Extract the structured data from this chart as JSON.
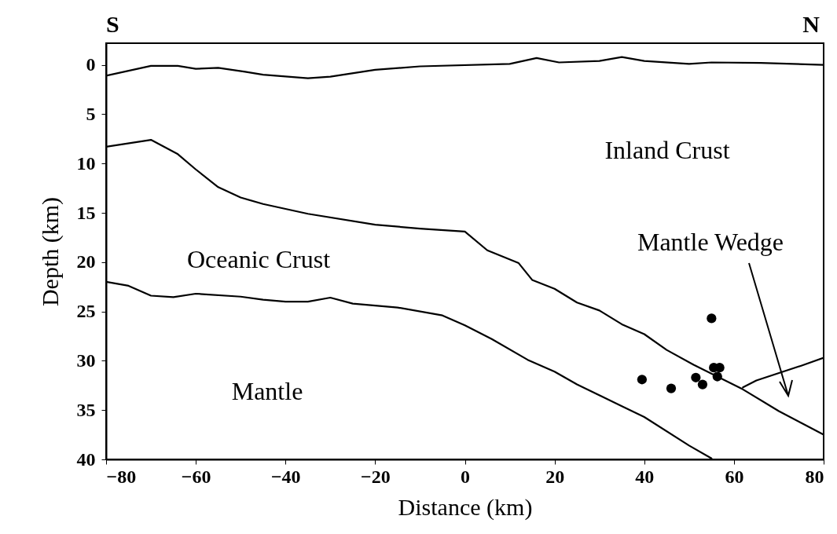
{
  "chart_data": {
    "type": "line",
    "xlabel": "Distance (km)",
    "ylabel": "Depth (km)",
    "xlim": [
      -80,
      80
    ],
    "ylim": [
      40,
      -2.2
    ],
    "xticks": [
      -80,
      -60,
      -40,
      -20,
      0,
      20,
      40,
      60,
      80
    ],
    "yticks": [
      0,
      5,
      10,
      15,
      20,
      25,
      30,
      35,
      40
    ],
    "grid": false,
    "series": [
      {
        "color": "#000000",
        "x": [
          -80,
          -70,
          -64,
          -60,
          -55,
          -49,
          -45,
          -35,
          -30,
          -20,
          -10,
          10,
          16,
          21,
          30,
          35,
          40,
          50,
          55,
          66,
          80
        ],
        "values": [
          1.1,
          0.1,
          0.1,
          0.4,
          0.3,
          0.7,
          1.0,
          1.35,
          1.2,
          0.5,
          0.15,
          -0.1,
          -0.7,
          -0.25,
          -0.4,
          -0.8,
          -0.4,
          -0.1,
          -0.25,
          -0.2,
          0
        ]
      },
      {
        "color": "#000000",
        "x": [
          -80,
          -70,
          -64,
          -60,
          -55,
          -50,
          -45,
          -35,
          -20,
          -10,
          0,
          5,
          12,
          15,
          20,
          25,
          30,
          35,
          40,
          45,
          51,
          62,
          70,
          75,
          80
        ],
        "values": [
          8.3,
          7.6,
          9.05,
          10.6,
          12.4,
          13.45,
          14.1,
          15.1,
          16.2,
          16.6,
          16.9,
          18.8,
          20.1,
          21.8,
          22.7,
          24.1,
          24.9,
          26.3,
          27.3,
          28.9,
          30.4,
          32.9,
          35.1,
          36.3,
          37.5
        ]
      },
      {
        "color": "#000000",
        "x": [
          -80,
          -75,
          -70,
          -65,
          -60,
          -50,
          -45,
          -40,
          -35,
          -30,
          -25,
          -15,
          -5,
          0,
          6,
          14,
          20,
          25,
          35,
          40,
          50,
          55
        ],
        "values": [
          22.0,
          22.4,
          23.4,
          23.55,
          23.2,
          23.5,
          23.8,
          24.0,
          24.0,
          23.6,
          24.2,
          24.6,
          25.4,
          26.4,
          27.8,
          29.9,
          31.1,
          32.4,
          34.6,
          35.7,
          38.6,
          39.9
        ]
      },
      {
        "color": "#000000",
        "x": [
          62,
          65,
          75,
          80
        ],
        "values": [
          32.7,
          32.0,
          30.5,
          29.7
        ]
      },
      {
        "type": "scatter",
        "color": "#000000",
        "marker": "circle",
        "x": [
          39.5,
          46,
          51.5,
          53,
          55,
          55.5,
          56.8,
          56.3
        ],
        "values": [
          31.9,
          32.8,
          31.7,
          32.4,
          25.7,
          30.7,
          30.7,
          31.6
        ]
      }
    ],
    "annotations": [
      "S",
      "N",
      "Inland Crust",
      "Oceanic Crust",
      "Mantle",
      "Mantle Wedge"
    ]
  }
}
